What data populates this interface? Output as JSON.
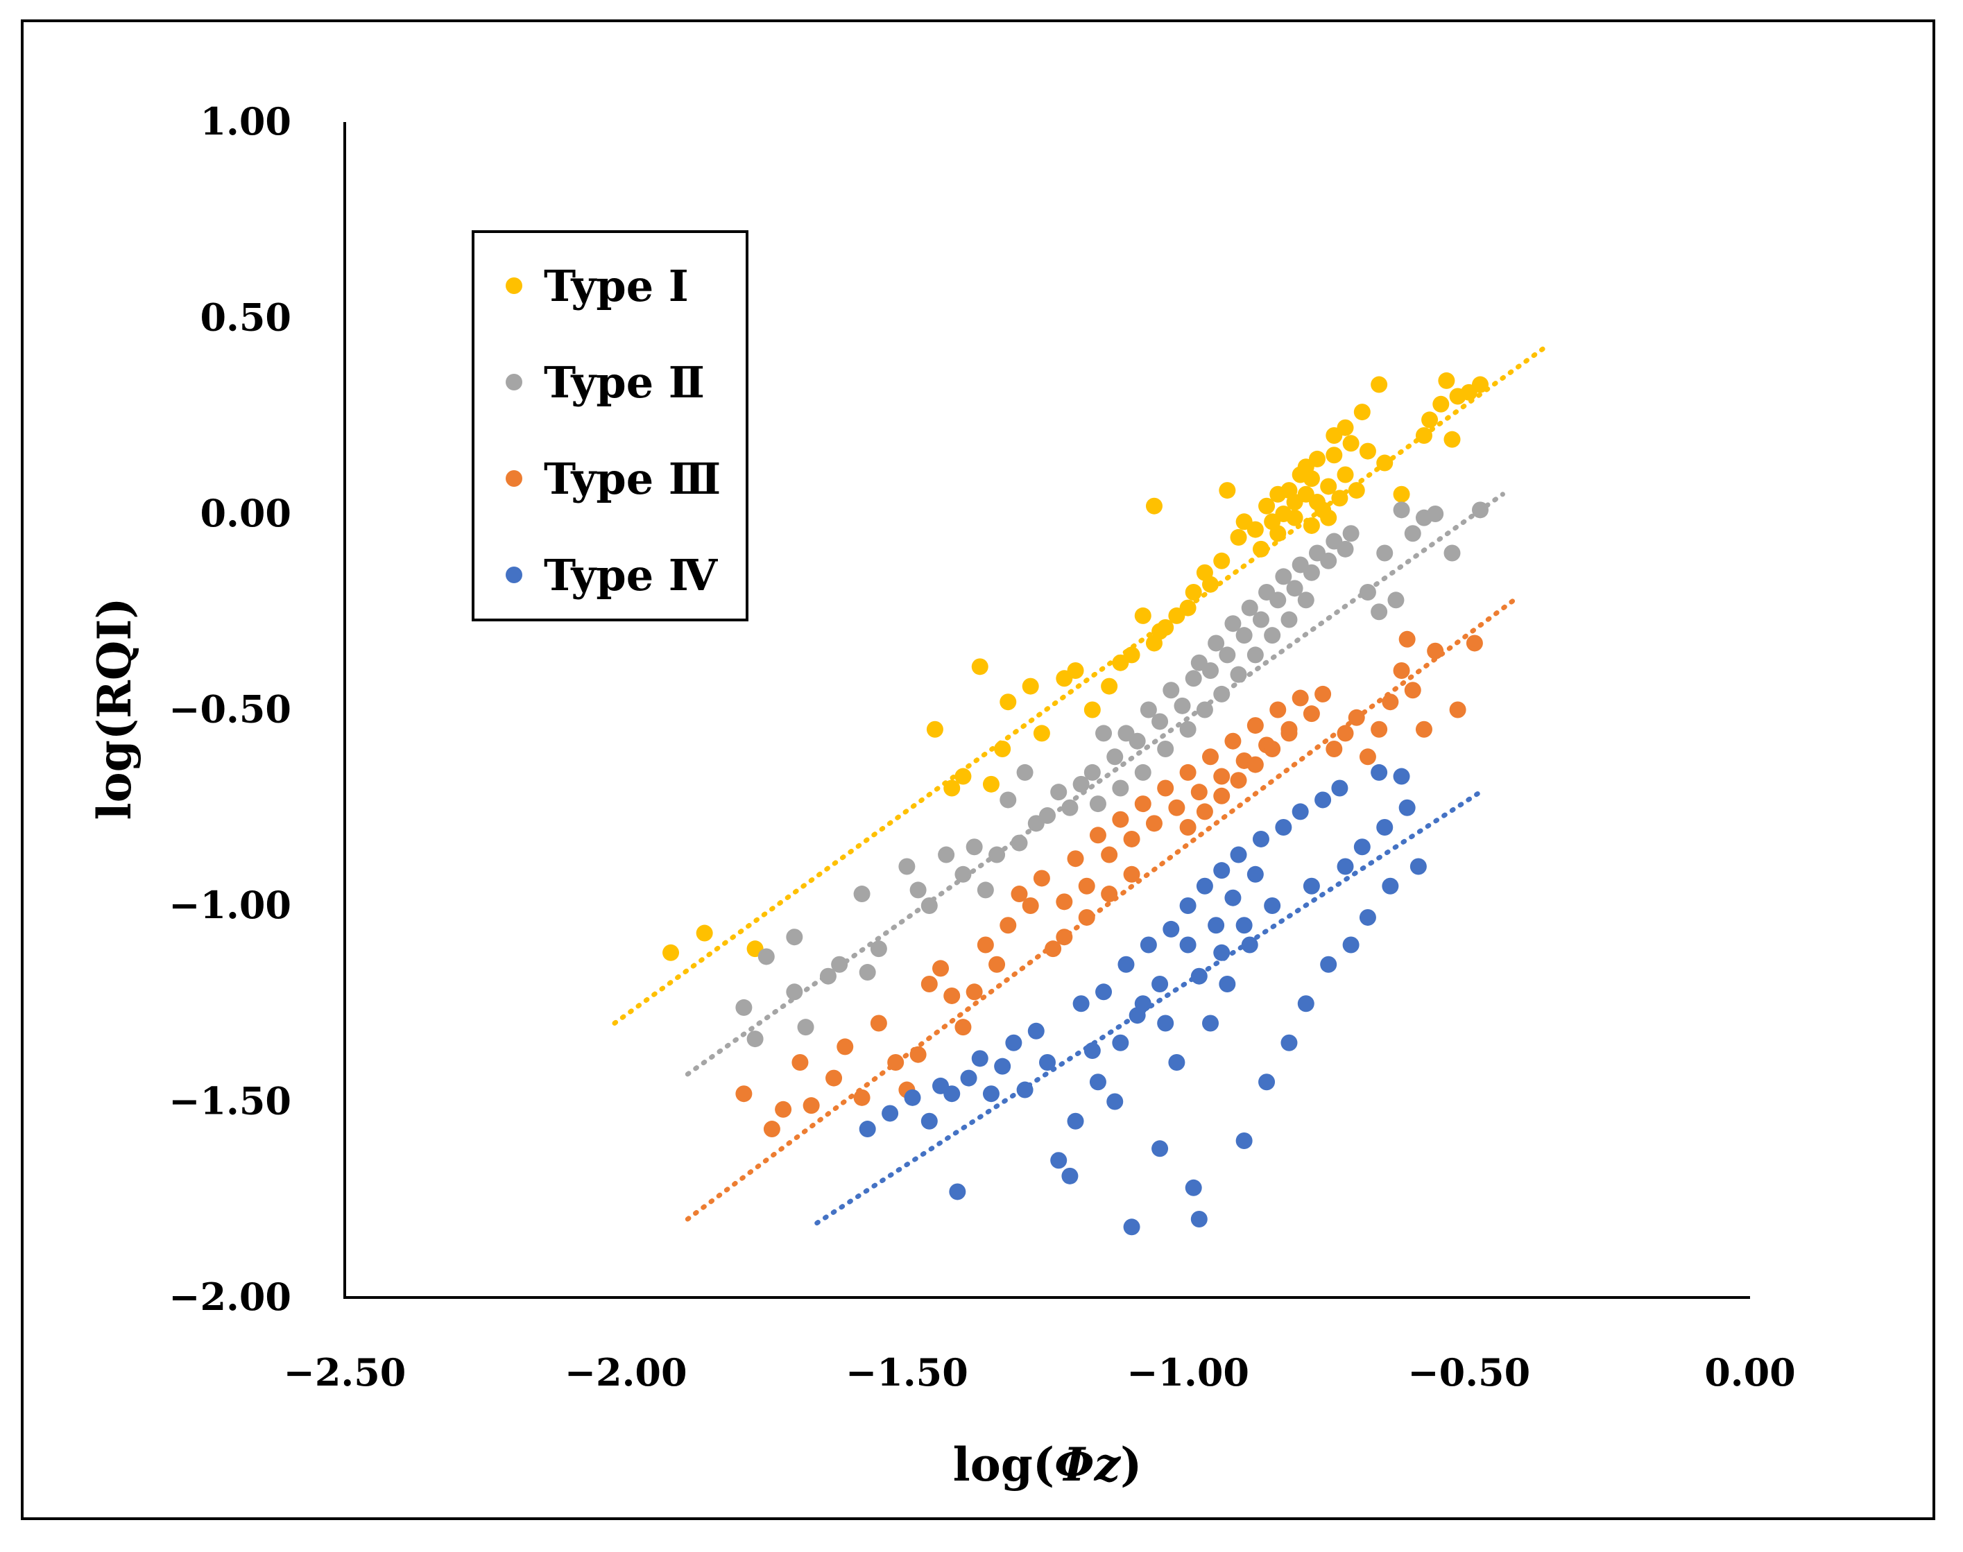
{
  "chart_data": {
    "type": "scatter",
    "xlabel_prefix": "log(",
    "xlabel_symbol": "Φz",
    "xlabel_suffix": ")",
    "ylabel": "log(RQI)",
    "xlim": [
      -2.5,
      0.0
    ],
    "ylim": [
      -2.0,
      1.0
    ],
    "x_ticks": [
      -2.5,
      -2.0,
      -1.5,
      -1.0,
      -0.5,
      0.0
    ],
    "x_tick_labels": [
      "−2.50",
      "−2.00",
      "−1.50",
      "−1.00",
      "−0.50",
      "0.00"
    ],
    "y_ticks": [
      1.0,
      0.5,
      0.0,
      -0.5,
      -1.0,
      -1.5,
      -2.0
    ],
    "y_tick_labels": [
      "1.00",
      "0.50",
      "0.00",
      "−0.50",
      "−1.00",
      "−1.50",
      "−2.00"
    ],
    "grid": false,
    "legend_position": "top-left",
    "series": [
      {
        "name": "Type Ⅰ",
        "color": "#ffc000",
        "trendline": {
          "x": [
            -2.02,
            -0.36
          ],
          "y": [
            -1.3,
            0.43
          ]
        },
        "points": [
          [
            -1.92,
            -1.12
          ],
          [
            -1.86,
            -1.07
          ],
          [
            -1.77,
            -1.11
          ],
          [
            -1.45,
            -0.55
          ],
          [
            -1.42,
            -0.7
          ],
          [
            -1.4,
            -0.67
          ],
          [
            -1.37,
            -0.39
          ],
          [
            -1.35,
            -0.69
          ],
          [
            -1.33,
            -0.6
          ],
          [
            -1.32,
            -0.48
          ],
          [
            -1.28,
            -0.44
          ],
          [
            -1.26,
            -0.56
          ],
          [
            -1.22,
            -0.42
          ],
          [
            -1.2,
            -0.4
          ],
          [
            -1.17,
            -0.5
          ],
          [
            -1.14,
            -0.44
          ],
          [
            -1.12,
            -0.38
          ],
          [
            -1.1,
            -0.36
          ],
          [
            -1.08,
            -0.26
          ],
          [
            -1.06,
            -0.33
          ],
          [
            -1.05,
            -0.3
          ],
          [
            -1.04,
            -0.29
          ],
          [
            -1.02,
            -0.26
          ],
          [
            -0.99,
            -0.2
          ],
          [
            -1.0,
            -0.24
          ],
          [
            -0.97,
            -0.15
          ],
          [
            -0.96,
            -0.18
          ],
          [
            -0.94,
            -0.12
          ],
          [
            -0.91,
            -0.06
          ],
          [
            -0.9,
            -0.02
          ],
          [
            -0.88,
            -0.04
          ],
          [
            -0.87,
            -0.09
          ],
          [
            -0.86,
            0.02
          ],
          [
            -0.85,
            -0.02
          ],
          [
            -0.84,
            0.05
          ],
          [
            -0.83,
            0.0
          ],
          [
            -0.82,
            0.06
          ],
          [
            -0.81,
            0.03
          ],
          [
            -0.8,
            0.1
          ],
          [
            -0.79,
            0.05
          ],
          [
            -0.78,
            0.09
          ],
          [
            -0.77,
            0.14
          ],
          [
            -0.76,
            0.01
          ],
          [
            -0.75,
            0.07
          ],
          [
            -0.74,
            0.2
          ],
          [
            -0.73,
            0.04
          ],
          [
            -0.72,
            0.1
          ],
          [
            -0.71,
            0.18
          ],
          [
            -0.7,
            0.06
          ],
          [
            -0.69,
            0.26
          ],
          [
            -0.68,
            0.16
          ],
          [
            -0.66,
            0.33
          ],
          [
            -0.65,
            0.13
          ],
          [
            -0.62,
            0.05
          ],
          [
            -0.58,
            0.2
          ],
          [
            -0.57,
            0.24
          ],
          [
            -0.55,
            0.28
          ],
          [
            -0.54,
            0.34
          ],
          [
            -0.53,
            0.19
          ],
          [
            -0.52,
            0.3
          ],
          [
            -0.5,
            0.31
          ],
          [
            -0.48,
            0.33
          ],
          [
            -0.93,
            0.06
          ],
          [
            -1.06,
            0.02
          ],
          [
            -0.81,
            -0.01
          ],
          [
            -0.77,
            0.03
          ],
          [
            -0.79,
            0.12
          ],
          [
            -0.74,
            0.15
          ],
          [
            -0.72,
            0.22
          ],
          [
            -0.84,
            -0.05
          ],
          [
            -0.78,
            -0.03
          ],
          [
            -0.75,
            -0.01
          ]
        ]
      },
      {
        "name": "Type Ⅱ",
        "color": "#a5a5a5",
        "trendline": {
          "x": [
            -1.89,
            -0.44
          ],
          "y": [
            -1.43,
            0.05
          ]
        },
        "points": [
          [
            -1.79,
            -1.26
          ],
          [
            -1.77,
            -1.34
          ],
          [
            -1.75,
            -1.13
          ],
          [
            -1.7,
            -1.08
          ],
          [
            -1.7,
            -1.22
          ],
          [
            -1.68,
            -1.31
          ],
          [
            -1.64,
            -1.18
          ],
          [
            -1.62,
            -1.15
          ],
          [
            -1.58,
            -0.97
          ],
          [
            -1.57,
            -1.17
          ],
          [
            -1.55,
            -1.11
          ],
          [
            -1.5,
            -0.9
          ],
          [
            -1.48,
            -0.96
          ],
          [
            -1.46,
            -1.0
          ],
          [
            -1.43,
            -0.87
          ],
          [
            -1.4,
            -0.92
          ],
          [
            -1.38,
            -0.85
          ],
          [
            -1.36,
            -0.96
          ],
          [
            -1.34,
            -0.87
          ],
          [
            -1.32,
            -0.73
          ],
          [
            -1.3,
            -0.84
          ],
          [
            -1.29,
            -0.66
          ],
          [
            -1.27,
            -0.79
          ],
          [
            -1.25,
            -0.77
          ],
          [
            -1.23,
            -0.71
          ],
          [
            -1.21,
            -0.75
          ],
          [
            -1.19,
            -0.69
          ],
          [
            -1.17,
            -0.66
          ],
          [
            -1.15,
            -0.56
          ],
          [
            -1.13,
            -0.62
          ],
          [
            -1.11,
            -0.56
          ],
          [
            -1.09,
            -0.58
          ],
          [
            -1.07,
            -0.5
          ],
          [
            -1.05,
            -0.53
          ],
          [
            -1.03,
            -0.45
          ],
          [
            -1.01,
            -0.49
          ],
          [
            -0.99,
            -0.42
          ],
          [
            -0.98,
            -0.38
          ],
          [
            -0.96,
            -0.4
          ],
          [
            -0.95,
            -0.33
          ],
          [
            -0.93,
            -0.36
          ],
          [
            -0.92,
            -0.28
          ],
          [
            -0.9,
            -0.31
          ],
          [
            -0.89,
            -0.24
          ],
          [
            -0.87,
            -0.27
          ],
          [
            -0.86,
            -0.2
          ],
          [
            -0.84,
            -0.22
          ],
          [
            -0.83,
            -0.16
          ],
          [
            -0.81,
            -0.19
          ],
          [
            -0.8,
            -0.13
          ],
          [
            -0.78,
            -0.15
          ],
          [
            -0.77,
            -0.1
          ],
          [
            -0.75,
            -0.12
          ],
          [
            -0.74,
            -0.07
          ],
          [
            -0.72,
            -0.09
          ],
          [
            -0.71,
            -0.05
          ],
          [
            -0.68,
            -0.2
          ],
          [
            -0.66,
            -0.25
          ],
          [
            -0.65,
            -0.1
          ],
          [
            -0.63,
            -0.22
          ],
          [
            -0.62,
            0.01
          ],
          [
            -0.6,
            -0.05
          ],
          [
            -0.58,
            -0.01
          ],
          [
            -0.56,
            0.0
          ],
          [
            -0.53,
            -0.1
          ],
          [
            -0.48,
            0.01
          ],
          [
            -1.0,
            -0.55
          ],
          [
            -0.97,
            -0.5
          ],
          [
            -0.94,
            -0.46
          ],
          [
            -0.91,
            -0.41
          ],
          [
            -0.88,
            -0.36
          ],
          [
            -0.85,
            -0.31
          ],
          [
            -0.82,
            -0.27
          ],
          [
            -0.79,
            -0.22
          ],
          [
            -1.04,
            -0.6
          ],
          [
            -1.08,
            -0.66
          ],
          [
            -1.12,
            -0.7
          ],
          [
            -1.16,
            -0.74
          ]
        ]
      },
      {
        "name": "Type Ⅲ",
        "color": "#ed7d31",
        "trendline": {
          "x": [
            -1.89,
            -0.42
          ],
          "y": [
            -1.8,
            -0.22
          ]
        },
        "points": [
          [
            -1.79,
            -1.48
          ],
          [
            -1.74,
            -1.57
          ],
          [
            -1.72,
            -1.52
          ],
          [
            -1.69,
            -1.4
          ],
          [
            -1.67,
            -1.51
          ],
          [
            -1.63,
            -1.44
          ],
          [
            -1.61,
            -1.36
          ],
          [
            -1.58,
            -1.49
          ],
          [
            -1.55,
            -1.3
          ],
          [
            -1.52,
            -1.4
          ],
          [
            -1.5,
            -1.47
          ],
          [
            -1.48,
            -1.38
          ],
          [
            -1.46,
            -1.2
          ],
          [
            -1.44,
            -1.16
          ],
          [
            -1.42,
            -1.23
          ],
          [
            -1.4,
            -1.31
          ],
          [
            -1.38,
            -1.22
          ],
          [
            -1.36,
            -1.1
          ],
          [
            -1.34,
            -1.15
          ],
          [
            -1.32,
            -1.05
          ],
          [
            -1.3,
            -0.97
          ],
          [
            -1.28,
            -1.0
          ],
          [
            -1.26,
            -0.93
          ],
          [
            -1.24,
            -1.11
          ],
          [
            -1.22,
            -0.99
          ],
          [
            -1.2,
            -0.88
          ],
          [
            -1.18,
            -0.95
          ],
          [
            -1.16,
            -0.82
          ],
          [
            -1.14,
            -0.87
          ],
          [
            -1.12,
            -0.78
          ],
          [
            -1.1,
            -0.83
          ],
          [
            -1.08,
            -0.74
          ],
          [
            -1.06,
            -0.79
          ],
          [
            -1.04,
            -0.7
          ],
          [
            -1.02,
            -0.75
          ],
          [
            -1.0,
            -0.66
          ],
          [
            -0.98,
            -0.71
          ],
          [
            -0.96,
            -0.62
          ],
          [
            -0.94,
            -0.67
          ],
          [
            -0.92,
            -0.58
          ],
          [
            -0.9,
            -0.63
          ],
          [
            -0.88,
            -0.54
          ],
          [
            -0.86,
            -0.59
          ],
          [
            -0.84,
            -0.5
          ],
          [
            -0.82,
            -0.55
          ],
          [
            -0.8,
            -0.47
          ],
          [
            -0.78,
            -0.51
          ],
          [
            -0.76,
            -0.46
          ],
          [
            -0.74,
            -0.6
          ],
          [
            -0.72,
            -0.56
          ],
          [
            -0.7,
            -0.52
          ],
          [
            -0.68,
            -0.62
          ],
          [
            -0.66,
            -0.55
          ],
          [
            -0.64,
            -0.48
          ],
          [
            -0.62,
            -0.4
          ],
          [
            -0.61,
            -0.32
          ],
          [
            -0.6,
            -0.45
          ],
          [
            -0.58,
            -0.55
          ],
          [
            -0.56,
            -0.35
          ],
          [
            -0.52,
            -0.5
          ],
          [
            -0.49,
            -0.33
          ],
          [
            -1.0,
            -0.8
          ],
          [
            -0.97,
            -0.76
          ],
          [
            -0.94,
            -0.72
          ],
          [
            -0.91,
            -0.68
          ],
          [
            -0.88,
            -0.64
          ],
          [
            -1.1,
            -0.92
          ],
          [
            -1.14,
            -0.97
          ],
          [
            -1.18,
            -1.03
          ],
          [
            -1.22,
            -1.08
          ],
          [
            -0.85,
            -0.6
          ],
          [
            -0.82,
            -0.56
          ]
        ]
      },
      {
        "name": "Type Ⅳ",
        "color": "#4472c4",
        "trendline": {
          "x": [
            -1.66,
            -0.48
          ],
          "y": [
            -1.81,
            -0.71
          ]
        },
        "points": [
          [
            -1.41,
            -1.73
          ],
          [
            -1.57,
            -1.57
          ],
          [
            -1.53,
            -1.53
          ],
          [
            -1.49,
            -1.49
          ],
          [
            -1.46,
            -1.55
          ],
          [
            -1.44,
            -1.46
          ],
          [
            -1.42,
            -1.48
          ],
          [
            -1.39,
            -1.44
          ],
          [
            -1.37,
            -1.39
          ],
          [
            -1.35,
            -1.48
          ],
          [
            -1.33,
            -1.41
          ],
          [
            -1.31,
            -1.35
          ],
          [
            -1.29,
            -1.47
          ],
          [
            -1.27,
            -1.32
          ],
          [
            -1.25,
            -1.4
          ],
          [
            -1.23,
            -1.65
          ],
          [
            -1.21,
            -1.69
          ],
          [
            -1.19,
            -1.25
          ],
          [
            -1.17,
            -1.37
          ],
          [
            -1.15,
            -1.22
          ],
          [
            -1.13,
            -1.5
          ],
          [
            -1.11,
            -1.15
          ],
          [
            -1.1,
            -1.82
          ],
          [
            -1.09,
            -1.28
          ],
          [
            -1.07,
            -1.1
          ],
          [
            -1.05,
            -1.62
          ],
          [
            -1.03,
            -1.06
          ],
          [
            -1.02,
            -1.4
          ],
          [
            -1.0,
            -1.0
          ],
          [
            -0.99,
            -1.72
          ],
          [
            -0.98,
            -1.8
          ],
          [
            -0.97,
            -0.95
          ],
          [
            -0.96,
            -1.3
          ],
          [
            -0.94,
            -0.91
          ],
          [
            -0.93,
            -1.2
          ],
          [
            -0.91,
            -0.87
          ],
          [
            -0.9,
            -1.6
          ],
          [
            -0.89,
            -1.1
          ],
          [
            -0.87,
            -0.83
          ],
          [
            -0.86,
            -1.45
          ],
          [
            -0.85,
            -1.0
          ],
          [
            -0.83,
            -0.8
          ],
          [
            -0.82,
            -1.35
          ],
          [
            -0.8,
            -0.76
          ],
          [
            -0.79,
            -1.25
          ],
          [
            -0.78,
            -0.95
          ],
          [
            -0.76,
            -0.73
          ],
          [
            -0.75,
            -1.15
          ],
          [
            -0.73,
            -0.7
          ],
          [
            -0.72,
            -0.9
          ],
          [
            -0.71,
            -1.1
          ],
          [
            -0.69,
            -0.85
          ],
          [
            -0.68,
            -1.03
          ],
          [
            -0.66,
            -0.66
          ],
          [
            -0.65,
            -0.8
          ],
          [
            -0.64,
            -0.95
          ],
          [
            -0.62,
            -0.67
          ],
          [
            -0.61,
            -0.75
          ],
          [
            -0.59,
            -0.9
          ],
          [
            -1.05,
            -1.2
          ],
          [
            -1.0,
            -1.1
          ],
          [
            -0.95,
            -1.05
          ],
          [
            -0.92,
            -0.98
          ],
          [
            -0.88,
            -0.92
          ],
          [
            -1.12,
            -1.35
          ],
          [
            -1.16,
            -1.45
          ],
          [
            -1.2,
            -1.55
          ],
          [
            -1.08,
            -1.25
          ],
          [
            -1.04,
            -1.3
          ],
          [
            -0.98,
            -1.18
          ],
          [
            -0.94,
            -1.12
          ],
          [
            -0.9,
            -1.05
          ]
        ]
      }
    ]
  }
}
